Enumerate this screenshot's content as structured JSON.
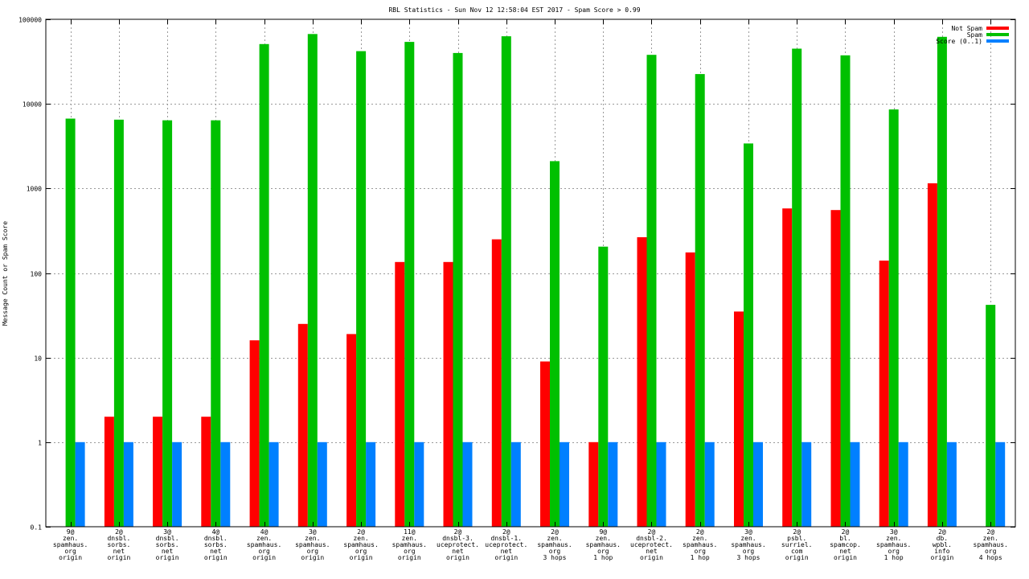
{
  "chart_data": {
    "type": "bar",
    "title": "RBL Statistics - Sun Nov 12 12:58:04 EST 2017 - Spam Score > 0.99",
    "ylabel": "Message Count or Spam Score",
    "xlabel": "",
    "yscale": "log",
    "ylim": [
      0.1,
      100000
    ],
    "yticks": [
      "0.1",
      "1",
      "10",
      "100",
      "1000",
      "10000",
      "100000"
    ],
    "grid": true,
    "legend_position": "top-right",
    "categories": [
      [
        "9@",
        "zen.",
        "spamhaus.",
        "org",
        "origin"
      ],
      [
        "2@",
        "dnsbl.",
        "sorbs.",
        "net",
        "origin"
      ],
      [
        "3@",
        "dnsbl.",
        "sorbs.",
        "net",
        "origin"
      ],
      [
        "4@",
        "dnsbl.",
        "sorbs.",
        "net",
        "origin"
      ],
      [
        "4@",
        "zen.",
        "spamhaus.",
        "org",
        "origin"
      ],
      [
        "3@",
        "zen.",
        "spamhaus.",
        "org",
        "origin"
      ],
      [
        "2@",
        "zen.",
        "spamhaus.",
        "org",
        "origin"
      ],
      [
        "11@",
        "zen.",
        "spamhaus.",
        "org",
        "origin"
      ],
      [
        "2@",
        "dnsbl-3.",
        "uceprotect.",
        "net",
        "origin"
      ],
      [
        "2@",
        "dnsbl-1.",
        "uceprotect.",
        "net",
        "origin"
      ],
      [
        "2@",
        "zen.",
        "spamhaus.",
        "org",
        "3 hops"
      ],
      [
        "9@",
        "zen.",
        "spamhaus.",
        "org",
        "1 hop"
      ],
      [
        "2@",
        "dnsbl-2.",
        "uceprotect.",
        "net",
        "origin"
      ],
      [
        "2@",
        "zen.",
        "spamhaus.",
        "org",
        "1 hop"
      ],
      [
        "3@",
        "zen.",
        "spamhaus.",
        "org",
        "3 hops"
      ],
      [
        "2@",
        "psbl.",
        "surriel.",
        "com",
        "origin"
      ],
      [
        "2@",
        "bl.",
        "spamcop.",
        "net",
        "origin"
      ],
      [
        "3@",
        "zen.",
        "spamhaus.",
        "org",
        "1 hop"
      ],
      [
        "2@",
        "db.",
        "wpbl.",
        "info",
        "origin"
      ],
      [
        "2@",
        "zen.",
        "spamhaus.",
        "org",
        "4 hops"
      ]
    ],
    "series": [
      {
        "name": "Not Spam",
        "color": "#ff0000",
        "values": [
          0,
          2,
          2,
          2,
          16,
          25,
          19,
          135,
          135,
          250,
          9,
          1,
          265,
          175,
          35,
          580,
          555,
          140,
          1150,
          0
        ]
      },
      {
        "name": "Spam",
        "color": "#00c000",
        "values": [
          6700,
          6500,
          6400,
          6400,
          51000,
          67000,
          42000,
          54000,
          40000,
          63000,
          2100,
          205,
          38000,
          22500,
          3400,
          45000,
          37500,
          8600,
          62000,
          42
        ]
      },
      {
        "name": "Score (0..1)",
        "color": "#0080ff",
        "values": [
          1,
          1,
          1,
          1,
          1,
          1,
          1,
          1,
          1,
          1,
          1,
          1,
          1,
          1,
          1,
          1,
          1,
          1,
          1,
          1
        ]
      }
    ]
  }
}
